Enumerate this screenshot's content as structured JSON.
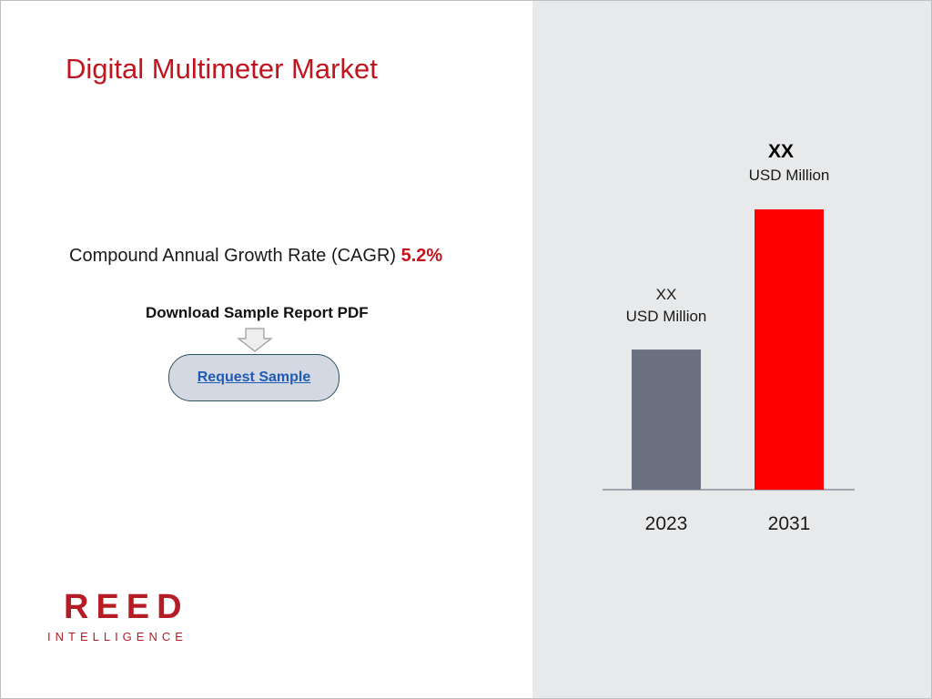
{
  "title": "Digital Multimeter Market",
  "cagr": {
    "label": "Compound Annual Growth Rate (CAGR)",
    "value": "5.2%"
  },
  "download_label": "Download Sample Report PDF",
  "request_button": "Request Sample",
  "logo": {
    "main": "REED",
    "sub": "INTELLIGENCE"
  },
  "colors": {
    "accent": "#c0151e",
    "bar_2023": "#6b7080",
    "bar_2031": "#ff0000",
    "panel": "#e8e9eb"
  },
  "chart_data": {
    "type": "bar",
    "categories": [
      "2023",
      "2031"
    ],
    "values": [
      1,
      2
    ],
    "value_labels": [
      {
        "top": "XX",
        "bottom": "USD Million"
      },
      {
        "top": "XX",
        "bottom": "USD Million"
      }
    ],
    "ylim": [
      0,
      2.02
    ],
    "grid": false,
    "legend": "none"
  }
}
